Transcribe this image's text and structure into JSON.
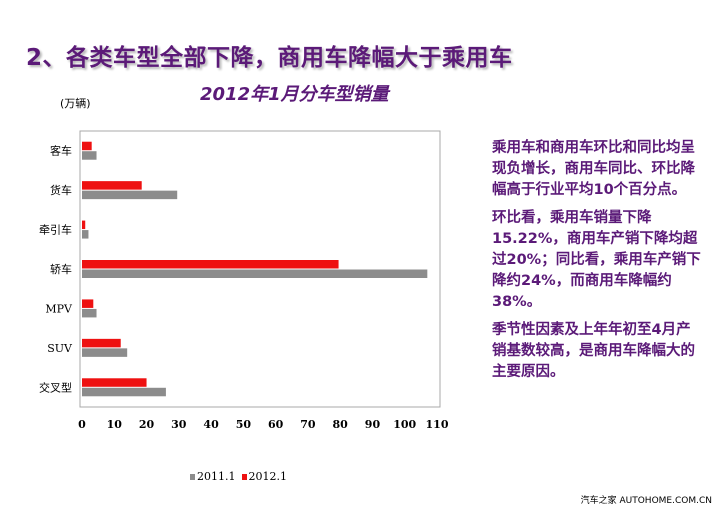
{
  "slide": {
    "title": "2、各类车型全部下降，商用车降幅大于乘用车",
    "paragraphs": [
      "乘用车和商用车环比和同比均呈现负增长，商用车同比、环比降幅高于行业平均10个百分点。",
      "环比看，乘用车销量下降15.22%，商用车产销下降均超过20%；同比看，乘用车产销下降约24%，而商用车降幅约38%。",
      "季节性因素及上年年初至4月产销基数较高，是商用车降幅大的主要原因。"
    ],
    "footer": "汽车之家 AUTOHOME.COM.CN"
  },
  "chart_data": {
    "type": "bar",
    "orientation": "horizontal",
    "title": "2012年1月分车型销量",
    "unit_label": "(万辆)",
    "categories": [
      "客车",
      "货车",
      "牵引车",
      "轿车",
      "MPV",
      "SUV",
      "交叉型"
    ],
    "series": [
      {
        "name": "2012.1",
        "color": "#ee1111",
        "values": [
          3,
          18.5,
          1,
          79.5,
          3.5,
          12,
          20
        ]
      },
      {
        "name": "2011.1",
        "color": "#8c8c8c",
        "values": [
          4.5,
          29.5,
          2,
          107,
          4.5,
          14,
          26
        ]
      }
    ],
    "xlim": [
      0,
      110
    ],
    "xticks": [
      0,
      10,
      20,
      30,
      40,
      50,
      60,
      70,
      80,
      90,
      100,
      110
    ],
    "legend_order": [
      "2011.1",
      "2012.1"
    ],
    "legend_position": "bottom",
    "grid": false
  }
}
